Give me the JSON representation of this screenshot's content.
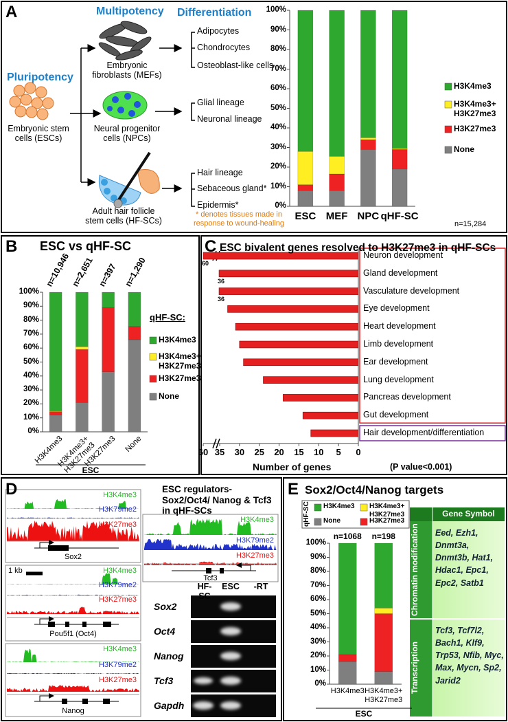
{
  "panel_labels": [
    "A",
    "B",
    "C",
    "D",
    "E"
  ],
  "diagram_a": {
    "pluripotency": "Pluripotency",
    "multipotency": "Multipotency",
    "differentiation": "Differentiation",
    "source": "Embryonic stem cells (ESCs)",
    "lineages": [
      {
        "name": "Embryonic fibroblasts (MEFs)",
        "outputs": [
          "Adipocytes",
          "Chondrocytes",
          "Osteoblast-like cells"
        ]
      },
      {
        "name": "Neural progenitor cells (NPCs)",
        "outputs": [
          "Glial lineage",
          "Neuronal lineage"
        ]
      },
      {
        "name": "Adult hair follicle stem cells (HF-SCs)",
        "outputs": [
          "Hair lineage",
          "Sebaceous gland*",
          "Epidermis*"
        ]
      }
    ],
    "footnote": "* denotes tissues made in response to wound-healing"
  },
  "chart_data": [
    {
      "type": "stacked_bar",
      "categories": [
        "ESC",
        "MEF",
        "NPC",
        "qHF-SC"
      ],
      "series": [
        {
          "name": "None",
          "color": "#7f7f7f",
          "values": [
            8,
            8,
            29,
            19
          ]
        },
        {
          "name": "H3K27me3",
          "color": "#ee2222",
          "values": [
            3,
            8.5,
            5,
            10
          ]
        },
        {
          "name": "H3K4me3+ H3K27me3",
          "color": "#ffee22",
          "values": [
            17,
            9,
            1,
            0.5
          ]
        },
        {
          "name": "H3K4me3",
          "color": "#2ea82e",
          "values": [
            72,
            74.5,
            65,
            70.5
          ]
        }
      ],
      "ylim": [
        0,
        100
      ],
      "yticks": [
        {
          "value": 0,
          "label": "0%"
        },
        {
          "value": 10,
          "label": "10%"
        },
        {
          "value": 20,
          "label": "20%"
        },
        {
          "value": 30,
          "label": "30%"
        },
        {
          "value": 40,
          "label": "40%"
        },
        {
          "value": 50,
          "label": "50%"
        },
        {
          "value": 60,
          "label": "60%"
        },
        {
          "value": 70,
          "label": "70%"
        },
        {
          "value": 80,
          "label": "80%"
        },
        {
          "value": 90,
          "label": "90%"
        },
        {
          "value": 100,
          "label": "100%"
        }
      ],
      "annotation": "n=15,284",
      "legend": "right"
    },
    {
      "type": "stacked_bar",
      "title": "ESC vs qHF-SC",
      "categories": [
        "H3K4me3",
        "H3K4me3+ H3K27me3",
        "H3K27me3",
        "None"
      ],
      "category_group": "ESC",
      "bar_labels": [
        "n=10,946",
        "n=2,651",
        "n=397",
        "n=1,290"
      ],
      "legend_title": "qHF-SC:",
      "series": [
        {
          "name": "None",
          "color": "#7f7f7f",
          "values": [
            12,
            21,
            43,
            66
          ]
        },
        {
          "name": "H3K27me3",
          "color": "#ee2222",
          "values": [
            2.5,
            38,
            46,
            9.5
          ]
        },
        {
          "name": "H3K4me3+ H3K27me3",
          "color": "#ffee22",
          "values": [
            0.5,
            2,
            0,
            0
          ]
        },
        {
          "name": "H3K4me3",
          "color": "#2ea82e",
          "values": [
            85,
            39,
            11,
            24.5
          ]
        }
      ],
      "ylim": [
        0,
        100
      ],
      "yticks": [
        {
          "value": 0,
          "label": "0%"
        },
        {
          "value": 10,
          "label": "10%"
        },
        {
          "value": 20,
          "label": "20%"
        },
        {
          "value": 30,
          "label": "30%"
        },
        {
          "value": 40,
          "label": "40%"
        },
        {
          "value": 50,
          "label": "50%"
        },
        {
          "value": 60,
          "label": "60%"
        },
        {
          "value": 70,
          "label": "70%"
        },
        {
          "value": 80,
          "label": "80%"
        },
        {
          "value": 90,
          "label": "90%"
        },
        {
          "value": 100,
          "label": "100%"
        }
      ],
      "legend": "right"
    },
    {
      "type": "barh",
      "title": "ESC bivalent genes resolved to H3K27me3 in qHF-SCs",
      "categories": [
        "Neuron development",
        "Gland development",
        "Vasculature development",
        "Eye development",
        "Heart development",
        "Limb development",
        "Ear development",
        "Lung development",
        "Pancreas development",
        "Gut development",
        "Hair development/differentiation"
      ],
      "values": [
        60,
        36,
        36,
        33,
        31,
        30,
        29,
        24,
        19,
        14,
        12
      ],
      "color": "#e42020",
      "label_box_colors": [
        "#e02020",
        "#e02020",
        "#e02020",
        "#e02020",
        "#e02020",
        "#e02020",
        "#e02020",
        "#e02020",
        "#e02020",
        "#e02020",
        "#7a2a9a"
      ],
      "xlim": [
        60,
        0
      ],
      "xticks": [
        60,
        35,
        30,
        25,
        20,
        15,
        10,
        5,
        0
      ],
      "axis_break": true,
      "xlabel": "Number of genes",
      "annotation": "(P value<0.001)"
    },
    {
      "type": "stacked_bar",
      "title": "Sox2/Oct4/Nanog targets",
      "categories": [
        "H3K4me3",
        "H3K4me3+ H3K27me3"
      ],
      "category_group": "ESC",
      "bar_labels": [
        "n=1068",
        "n=198"
      ],
      "legend_title": "qHF-SC",
      "series": [
        {
          "name": "None",
          "color": "#7f7f7f",
          "values": [
            16,
            9
          ]
        },
        {
          "name": "H3K27me3",
          "color": "#ee2222",
          "values": [
            5,
            41
          ]
        },
        {
          "name": "H3K4me3+ H3K27me3",
          "color": "#ffee22",
          "values": [
            0,
            4
          ]
        },
        {
          "name": "H3K4me3",
          "color": "#2ea82e",
          "values": [
            79,
            46
          ]
        }
      ],
      "ylim": [
        0,
        100
      ],
      "yticks": [
        {
          "value": 0,
          "label": "0%"
        },
        {
          "value": 10,
          "label": "10%"
        },
        {
          "value": 20,
          "label": "20%"
        },
        {
          "value": 30,
          "label": "30%"
        },
        {
          "value": 40,
          "label": "40%"
        },
        {
          "value": 50,
          "label": "50%"
        },
        {
          "value": 60,
          "label": "60%"
        },
        {
          "value": 70,
          "label": "70%"
        },
        {
          "value": 80,
          "label": "80%"
        },
        {
          "value": 90,
          "label": "90%"
        },
        {
          "value": 100,
          "label": "100%"
        }
      ],
      "legend": "top"
    }
  ],
  "panel_d": {
    "title": "ESC regulators- Sox2/Oct4/ Nanog & Tcf3 in qHF-SCs",
    "marks": [
      "H3K4me3",
      "H3K79me2",
      "H3K27me3"
    ],
    "genes": [
      "Sox2",
      "Pou5f1 (Oct4)",
      "Nanog",
      "Tcf3"
    ],
    "scale": "1 kb",
    "gel": {
      "columns": [
        "HF-SC",
        "ESC",
        "-RT"
      ],
      "rows": [
        "Sox2",
        "Oct4",
        "Nanog",
        "Tcf3",
        "Gapdh"
      ]
    }
  },
  "table_e": {
    "header": "Gene Symbol",
    "rows": [
      {
        "category": "Chromatin modification",
        "genes": "Eed, Ezh1, Dnmt3a, Dnmt3b, Hat1, Hdac1, Epc1, Epc2, Satb1"
      },
      {
        "category": "Transcription",
        "genes": "Tcf3, Tcf7l2, Bach1, Klf9, Trp53, Nfib, Myc, Max, Mycn, Sp2, Jarid2"
      }
    ]
  }
}
